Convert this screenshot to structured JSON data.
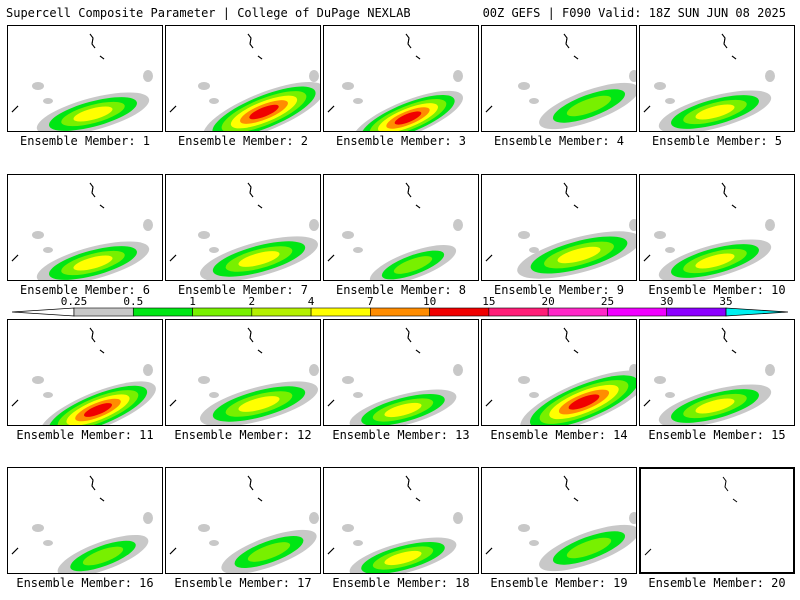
{
  "header": {
    "left": "Supercell Composite Parameter | College of DuPage NEXLAB",
    "right": "00Z GEFS | F090 Valid: 18Z SUN JUN 08 2025"
  },
  "colorbar": {
    "labels": [
      "0.25",
      "0.5",
      "1",
      "2",
      "4",
      "7",
      "10",
      "15",
      "20",
      "25",
      "30",
      "35"
    ],
    "colors": [
      "#c8c8c8",
      "#00e614",
      "#78f000",
      "#b4f000",
      "#ffff00",
      "#ff8c00",
      "#f00000",
      "#ff1e78",
      "#ff28c8",
      "#f000ff",
      "#8c00ff",
      "#b450dc",
      "#00f0f0"
    ]
  },
  "members": [
    {
      "label": "Ensemble Member: 1",
      "intensity": "moderate"
    },
    {
      "label": "Ensemble Member: 2",
      "intensity": "high"
    },
    {
      "label": "Ensemble Member: 3",
      "intensity": "high"
    },
    {
      "label": "Ensemble Member: 4",
      "intensity": "low"
    },
    {
      "label": "Ensemble Member: 5",
      "intensity": "moderate"
    },
    {
      "label": "Ensemble Member: 6",
      "intensity": "moderate"
    },
    {
      "label": "Ensemble Member: 7",
      "intensity": "moderate"
    },
    {
      "label": "Ensemble Member: 8",
      "intensity": "low"
    },
    {
      "label": "Ensemble Member: 9",
      "intensity": "moderate"
    },
    {
      "label": "Ensemble Member: 10",
      "intensity": "moderate"
    },
    {
      "label": "Ensemble Member: 11",
      "intensity": "high"
    },
    {
      "label": "Ensemble Member: 12",
      "intensity": "moderate"
    },
    {
      "label": "Ensemble Member: 13",
      "intensity": "moderate"
    },
    {
      "label": "Ensemble Member: 14",
      "intensity": "high"
    },
    {
      "label": "Ensemble Member: 15",
      "intensity": "moderate"
    },
    {
      "label": "Ensemble Member: 16",
      "intensity": "low"
    },
    {
      "label": "Ensemble Member: 17",
      "intensity": "low"
    },
    {
      "label": "Ensemble Member: 18",
      "intensity": "moderate"
    },
    {
      "label": "Ensemble Member: 19",
      "intensity": "low"
    },
    {
      "label": "Ensemble Member: 20",
      "intensity": "none"
    }
  ]
}
